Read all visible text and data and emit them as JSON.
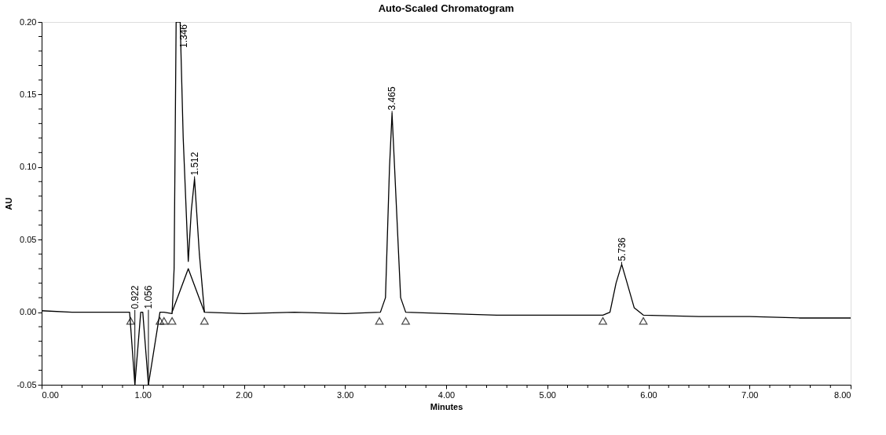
{
  "chart_data": {
    "type": "line",
    "title": "Auto-Scaled Chromatogram",
    "xlabel": "Minutes",
    "ylabel": "AU",
    "xlim": [
      0,
      8
    ],
    "ylim": [
      -0.05,
      0.2
    ],
    "grid": false,
    "line_style": "solid",
    "xticks": [
      {
        "value": 0,
        "label": "0.00"
      },
      {
        "value": 0.2,
        "label": null
      },
      {
        "value": 0.4,
        "label": null
      },
      {
        "value": 0.6,
        "label": null
      },
      {
        "value": 0.8,
        "label": null
      },
      {
        "value": 1,
        "label": "1.00"
      },
      {
        "value": 1.2,
        "label": null
      },
      {
        "value": 1.4,
        "label": null
      },
      {
        "value": 1.6,
        "label": null
      },
      {
        "value": 1.8,
        "label": null
      },
      {
        "value": 2,
        "label": "2.00"
      },
      {
        "value": 2.2,
        "label": null
      },
      {
        "value": 2.4,
        "label": null
      },
      {
        "value": 2.6,
        "label": null
      },
      {
        "value": 2.8,
        "label": null
      },
      {
        "value": 3,
        "label": "3.00"
      },
      {
        "value": 3.2,
        "label": null
      },
      {
        "value": 3.4,
        "label": null
      },
      {
        "value": 3.6,
        "label": null
      },
      {
        "value": 3.8,
        "label": null
      },
      {
        "value": 4,
        "label": "4.00"
      },
      {
        "value": 4.2,
        "label": null
      },
      {
        "value": 4.4,
        "label": null
      },
      {
        "value": 4.6,
        "label": null
      },
      {
        "value": 4.8,
        "label": null
      },
      {
        "value": 5,
        "label": "5.00"
      },
      {
        "value": 5.2,
        "label": null
      },
      {
        "value": 5.4,
        "label": null
      },
      {
        "value": 5.6,
        "label": null
      },
      {
        "value": 5.8,
        "label": null
      },
      {
        "value": 6,
        "label": "6.00"
      },
      {
        "value": 6.2,
        "label": null
      },
      {
        "value": 6.4,
        "label": null
      },
      {
        "value": 6.6,
        "label": null
      },
      {
        "value": 6.8,
        "label": null
      },
      {
        "value": 7,
        "label": "7.00"
      },
      {
        "value": 7.2,
        "label": null
      },
      {
        "value": 7.4,
        "label": null
      },
      {
        "value": 7.6,
        "label": null
      },
      {
        "value": 7.8,
        "label": null
      },
      {
        "value": 8,
        "label": "8.00"
      }
    ],
    "yticks": [
      {
        "value": -0.05,
        "label": "-0.05"
      },
      {
        "value": -0.04,
        "label": null
      },
      {
        "value": -0.03,
        "label": null
      },
      {
        "value": -0.02,
        "label": null
      },
      {
        "value": -0.01,
        "label": null
      },
      {
        "value": 0,
        "label": "0.00"
      },
      {
        "value": 0.01,
        "label": null
      },
      {
        "value": 0.02,
        "label": null
      },
      {
        "value": 0.03,
        "label": null
      },
      {
        "value": 0.04,
        "label": null
      },
      {
        "value": 0.05,
        "label": "0.05"
      },
      {
        "value": 0.06,
        "label": null
      },
      {
        "value": 0.07,
        "label": null
      },
      {
        "value": 0.08,
        "label": null
      },
      {
        "value": 0.09,
        "label": null
      },
      {
        "value": 0.1,
        "label": "0.10"
      },
      {
        "value": 0.11,
        "label": null
      },
      {
        "value": 0.12,
        "label": null
      },
      {
        "value": 0.13,
        "label": null
      },
      {
        "value": 0.14,
        "label": null
      },
      {
        "value": 0.15,
        "label": "0.15"
      },
      {
        "value": 0.16,
        "label": null
      },
      {
        "value": 0.17,
        "label": null
      },
      {
        "value": 0.18,
        "label": null
      },
      {
        "value": 0.19,
        "label": null
      },
      {
        "value": 0.2,
        "label": "0.20"
      }
    ],
    "series": [
      {
        "color": "#000000",
        "marker": "none",
        "x": [
          0,
          0.3,
          0.6,
          0.87,
          0.922,
          0.98,
          1.0,
          1.056,
          1.17,
          1.21,
          1.29,
          1.31,
          1.33,
          1.346,
          1.37,
          1.4,
          1.45,
          1.48,
          1.512,
          1.56,
          1.61,
          2.0,
          2.5,
          3.0,
          3.35,
          3.4,
          3.44,
          3.465,
          3.49,
          3.55,
          3.6,
          4.0,
          4.5,
          5.0,
          5.55,
          5.62,
          5.68,
          5.736,
          5.79,
          5.86,
          5.95,
          6.5,
          7.0,
          7.5,
          8.0
        ],
        "values": [
          0.001,
          0.0,
          0.0,
          0.0,
          -0.05,
          0.0,
          0.0,
          -0.05,
          0.0,
          0.0,
          -0.001,
          0.03,
          0.2,
          0.2,
          0.2,
          0.12,
          0.035,
          0.07,
          0.092,
          0.04,
          0.0,
          -0.001,
          0.0,
          -0.001,
          0.0,
          0.01,
          0.1,
          0.137,
          0.1,
          0.01,
          0.0,
          -0.001,
          -0.002,
          -0.002,
          -0.002,
          0.0,
          0.02,
          0.033,
          0.02,
          0.003,
          -0.002,
          -0.003,
          -0.003,
          -0.004,
          -0.004
        ]
      },
      {
        "color": "#000000",
        "marker": "none",
        "x": [
          1.29,
          1.45,
          1.61
        ],
        "values": [
          0.0,
          0.03,
          0.0
        ]
      },
      {
        "type": "scatter",
        "color": "#000000",
        "marker": "triangle",
        "x": [
          0.88,
          1.17,
          1.21,
          1.29,
          1.61,
          3.34,
          3.6,
          5.55,
          5.95
        ],
        "values": [
          -0.006,
          -0.006,
          -0.006,
          -0.006,
          -0.006,
          -0.006,
          -0.006,
          -0.006,
          -0.006
        ]
      }
    ],
    "annotations": [
      {
        "text": "0.922",
        "x": 0.922,
        "y": -0.05
      },
      {
        "text": "1.056",
        "x": 1.056,
        "y": -0.05
      },
      {
        "text": "1.346",
        "x": 1.346,
        "y": 0.2
      },
      {
        "text": "1.512",
        "x": 1.512,
        "y": 0.092
      },
      {
        "text": "3.465",
        "x": 3.465,
        "y": 0.137
      },
      {
        "text": "5.736",
        "x": 5.736,
        "y": 0.033
      }
    ]
  }
}
